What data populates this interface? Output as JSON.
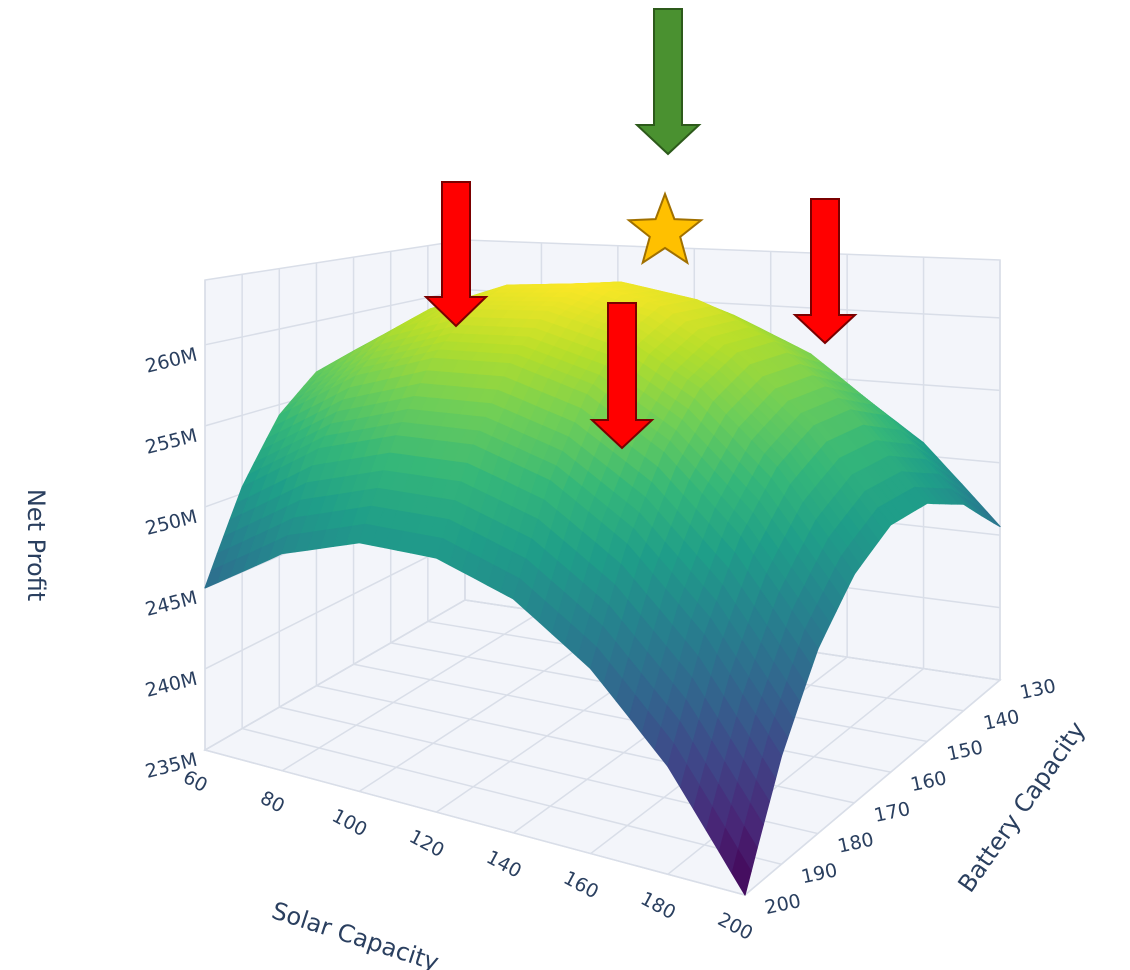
{
  "chart_data": {
    "type": "surface3d",
    "xlabel": "Solar Capacity",
    "ylabel": "Battery Capacity",
    "zlabel": "Net Profit",
    "x": [
      60,
      80,
      100,
      120,
      140,
      160,
      180,
      200
    ],
    "y": [
      130,
      140,
      150,
      160,
      170,
      180,
      190,
      200
    ],
    "z": [
      [
        250000000,
        254000000,
        256500000,
        257400000,
        256800000,
        254600000,
        250900000,
        245600000
      ],
      [
        254000000,
        257900000,
        260300000,
        261100000,
        260300000,
        258000000,
        254200000,
        248800000
      ],
      [
        256400000,
        260200000,
        262400000,
        263100000,
        262300000,
        259900000,
        255900000,
        250400000
      ],
      [
        257300000,
        260900000,
        263100000,
        263700000,
        262700000,
        260200000,
        256100000,
        250500000
      ],
      [
        256500000,
        260100000,
        262100000,
        262600000,
        261500000,
        258900000,
        254700000,
        248900000
      ],
      [
        254300000,
        257700000,
        259600000,
        260000000,
        258800000,
        256000000,
        251700000,
        245900000
      ],
      [
        250400000,
        253800000,
        255500000,
        255800000,
        254500000,
        251600000,
        247200000,
        241200000
      ],
      [
        245000000,
        248200000,
        249900000,
        250000000,
        248600000,
        245600000,
        241100000,
        235000000
      ]
    ],
    "xlim": [
      60,
      200
    ],
    "ylim": [
      130,
      200
    ],
    "zlim": [
      235000000,
      264000000
    ],
    "xticks": [
      60,
      80,
      100,
      120,
      140,
      160,
      180,
      200
    ],
    "yticks": [
      130,
      140,
      150,
      160,
      170,
      180,
      190,
      200
    ],
    "zticks": [
      {
        "value": 235000000,
        "label": "235M"
      },
      {
        "value": 240000000,
        "label": "240M"
      },
      {
        "value": 245000000,
        "label": "245M"
      },
      {
        "value": 250000000,
        "label": "250M"
      },
      {
        "value": 255000000,
        "label": "255M"
      },
      {
        "value": 260000000,
        "label": "260M"
      }
    ],
    "colorscale": [
      "#440154",
      "#482878",
      "#3e4989",
      "#31688e",
      "#26828e",
      "#1f9e89",
      "#35b779",
      "#6ece58",
      "#b5de2b",
      "#fde725"
    ],
    "grid": true
  }
}
